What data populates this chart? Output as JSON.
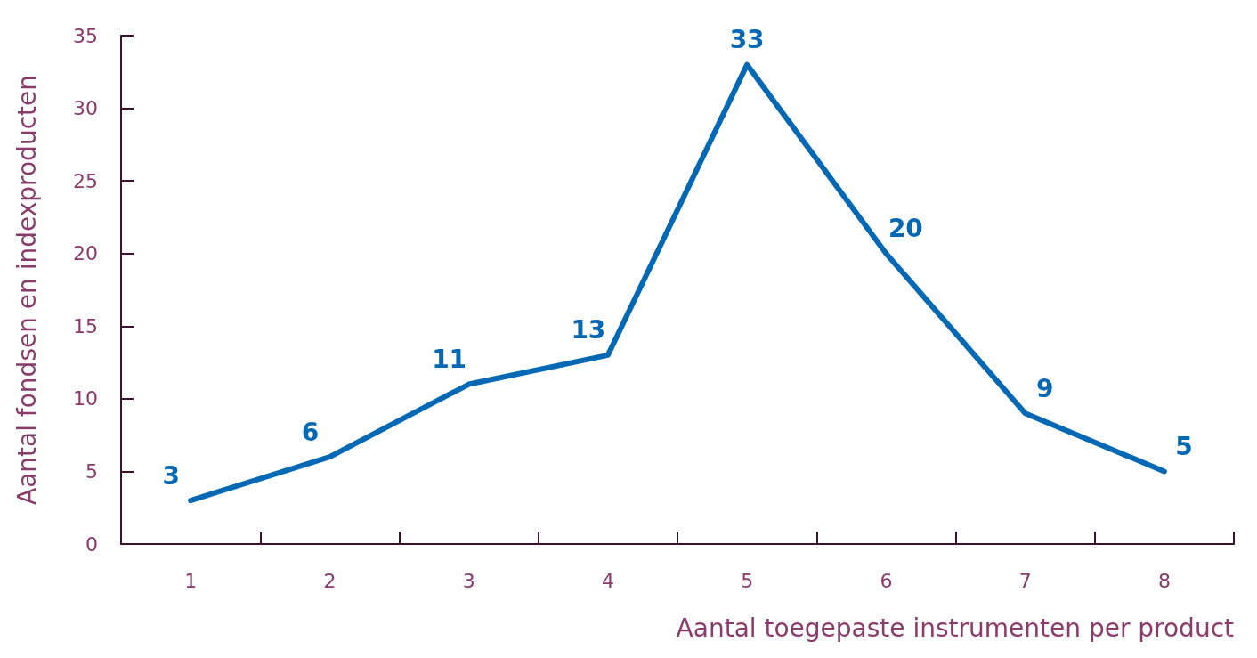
{
  "chart_data": {
    "type": "line",
    "xlabel": "Aantal toegepaste instrumenten per product",
    "ylabel": "Aantal fondsen en indexproducten",
    "categories": [
      "1",
      "2",
      "3",
      "4",
      "5",
      "6",
      "7",
      "8"
    ],
    "series": [
      {
        "color": "#0068b4",
        "values": [
          3,
          6,
          11,
          13,
          33,
          20,
          9,
          5
        ]
      }
    ],
    "ylim": [
      0,
      35
    ],
    "yticks": [
      0,
      5,
      10,
      15,
      20,
      25,
      30,
      35
    ],
    "grid": false,
    "marker": "none",
    "line_style": "solid",
    "data_labels": true
  }
}
